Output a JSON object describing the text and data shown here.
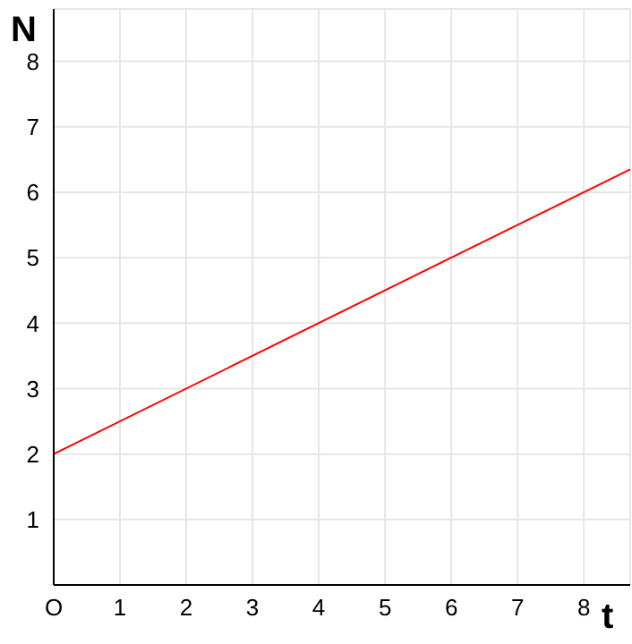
{
  "chart_data": {
    "type": "line",
    "xlabel": "t",
    "ylabel": "N",
    "x": [
      0,
      8.7
    ],
    "series": [
      {
        "color": "#ff0000",
        "values": [
          2,
          6.35
        ]
      }
    ],
    "xlim": [
      0,
      8.7
    ],
    "xticks": [
      {
        "value": 0,
        "label": "O"
      },
      1,
      2,
      3,
      4,
      5,
      6,
      7,
      8
    ],
    "ylim": [
      0,
      8.8
    ],
    "yticks": [
      {
        "value": 0,
        "label": null
      },
      1,
      2,
      3,
      4,
      5,
      6,
      7,
      8
    ],
    "grid": true,
    "marker": "none",
    "line_style": "solid"
  }
}
